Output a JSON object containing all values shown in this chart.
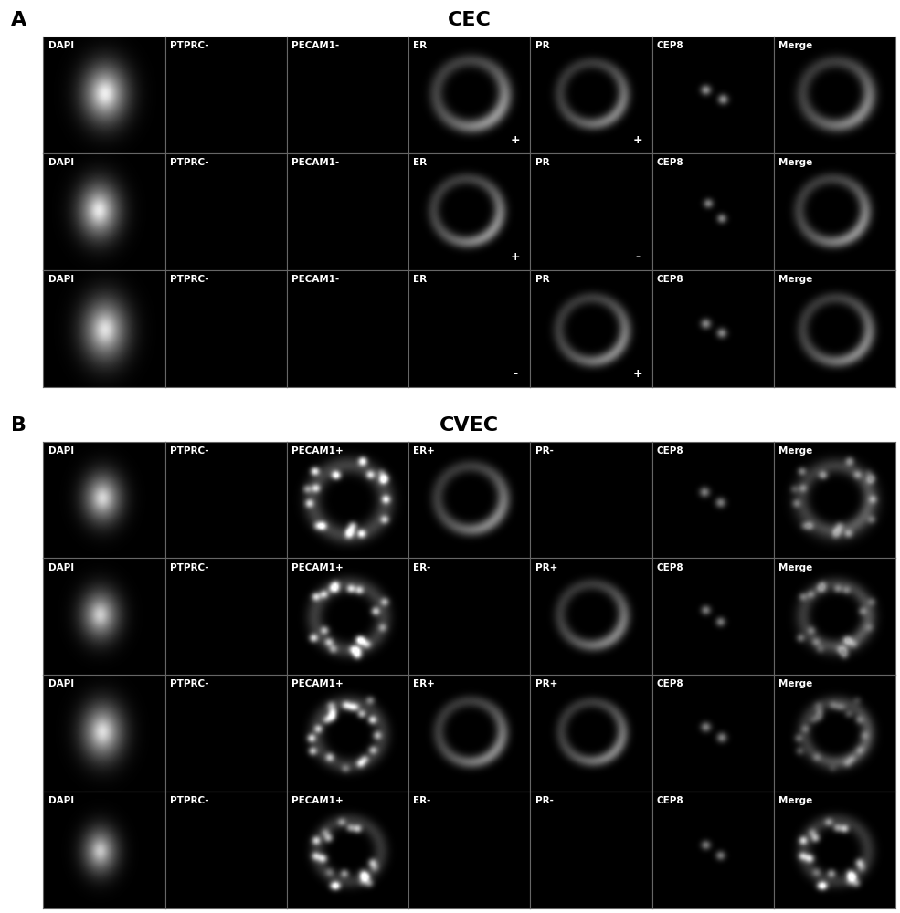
{
  "panel_A_title": "CEC",
  "panel_B_title": "CVEC",
  "panel_A_label": "A",
  "panel_B_label": "B",
  "panel_A_rows": 3,
  "panel_B_rows": 4,
  "cols": 7,
  "col_labels_A": [
    [
      "DAPI",
      "PTPRC-",
      "PECAM1-",
      "ER",
      "PR",
      "CEP8",
      "Merge"
    ],
    [
      "DAPI",
      "PTPRC-",
      "PECAM1-",
      "ER",
      "PR",
      "CEP8",
      "Merge"
    ],
    [
      "DAPI",
      "PTPRC-",
      "PECAM1-",
      "ER",
      "PR",
      "CEP8",
      "Merge"
    ]
  ],
  "col_labels_B": [
    [
      "DAPI",
      "PTPRC-",
      "PECAM1+",
      "ER+",
      "PR-",
      "CEP8",
      "Merge"
    ],
    [
      "DAPI",
      "PTPRC-",
      "PECAM1+",
      "ER-",
      "PR+",
      "CEP8",
      "Merge"
    ],
    [
      "DAPI",
      "PTPRC-",
      "PECAM1+",
      "ER+",
      "PR+",
      "CEP8",
      "Merge"
    ],
    [
      "DAPI",
      "PTPRC-",
      "PECAM1+",
      "ER-",
      "PR-",
      "CEP8",
      "Merge"
    ]
  ],
  "signs_A": [
    [
      null,
      null,
      null,
      "+",
      "+",
      null,
      null
    ],
    [
      null,
      null,
      null,
      "+",
      "-",
      null,
      null
    ],
    [
      null,
      null,
      null,
      "-",
      "+",
      null,
      null
    ]
  ],
  "bg_color": "#000000",
  "text_color": "#ffffff",
  "border_color": "#666666",
  "label_fontsize": 7.5,
  "title_fontsize": 16,
  "panel_label_fontsize": 16
}
